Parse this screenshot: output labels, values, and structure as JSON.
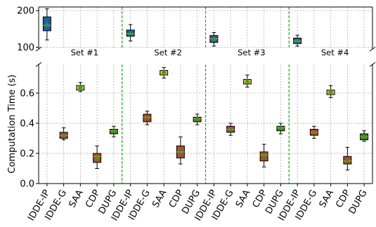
{
  "chart_data": {
    "type": "box",
    "ylabel": "Computation Time (s)",
    "categories": [
      "IDDE-IP",
      "IDDE-G",
      "SAA",
      "CDP",
      "DUPG"
    ],
    "groups": [
      "Set #1",
      "Set #2",
      "Set #3",
      "Set #4"
    ],
    "colors": {
      "IDDE-IP": "#c0392b",
      "IDDE-G": "#c0392b",
      "SAA": "#c8c832",
      "CDP": "#a0522d",
      "DUPG": "#2e8b2e",
      "top_boxes": "#1f5fa8",
      "mean_marker": "#2ca02c",
      "separator": "#2ca02c"
    },
    "top_panel": {
      "ylim": [
        95,
        210
      ],
      "yticks": [
        100,
        200
      ],
      "boxes": [
        {
          "set": "Set #1",
          "whislo": 120,
          "q1": 145,
          "med": 160,
          "q3": 183,
          "whishi": 205,
          "mean": 162
        },
        {
          "set": "Set #2",
          "whislo": 117,
          "q1": 130,
          "med": 137,
          "q3": 147,
          "whishi": 162,
          "mean": 138
        },
        {
          "set": "Set #3",
          "whislo": 103,
          "q1": 113,
          "med": 123,
          "q3": 132,
          "whishi": 140,
          "mean": 123
        },
        {
          "set": "Set #4",
          "whislo": 103,
          "q1": 110,
          "med": 117,
          "q3": 125,
          "whishi": 133,
          "mean": 118
        }
      ]
    },
    "bottom_panel": {
      "ylim": [
        0.0,
        0.79
      ],
      "yticks": [
        0.0,
        0.2,
        0.4,
        0.6
      ],
      "ytick_labels": [
        "0.0",
        "0.2",
        "0.4",
        "0.6"
      ],
      "groups": [
        {
          "set": "Set #1",
          "boxes": [
            {
              "name": "IDDE-G",
              "whislo": 0.29,
              "q1": 0.3,
              "med": 0.32,
              "q3": 0.34,
              "whishi": 0.37,
              "mean": 0.32
            },
            {
              "name": "SAA",
              "whislo": 0.61,
              "q1": 0.62,
              "med": 0.64,
              "q3": 0.65,
              "whishi": 0.67,
              "mean": 0.64
            },
            {
              "name": "CDP",
              "whislo": 0.1,
              "q1": 0.14,
              "med": 0.18,
              "q3": 0.2,
              "whishi": 0.25,
              "mean": 0.17
            },
            {
              "name": "DUPG",
              "whislo": 0.31,
              "q1": 0.33,
              "med": 0.35,
              "q3": 0.36,
              "whishi": 0.38,
              "mean": 0.35
            }
          ]
        },
        {
          "set": "Set #2",
          "boxes": [
            {
              "name": "IDDE-G",
              "whislo": 0.39,
              "q1": 0.41,
              "med": 0.44,
              "q3": 0.46,
              "whishi": 0.48,
              "mean": 0.44
            },
            {
              "name": "SAA",
              "whislo": 0.7,
              "q1": 0.72,
              "med": 0.74,
              "q3": 0.75,
              "whishi": 0.77,
              "mean": 0.74
            },
            {
              "name": "CDP",
              "whislo": 0.13,
              "q1": 0.17,
              "med": 0.21,
              "q3": 0.25,
              "whishi": 0.31,
              "mean": 0.21
            },
            {
              "name": "DUPG",
              "whislo": 0.39,
              "q1": 0.41,
              "med": 0.43,
              "q3": 0.44,
              "whishi": 0.46,
              "mean": 0.43
            }
          ]
        },
        {
          "set": "Set #3",
          "boxes": [
            {
              "name": "IDDE-G",
              "whislo": 0.32,
              "q1": 0.34,
              "med": 0.36,
              "q3": 0.38,
              "whishi": 0.4,
              "mean": 0.36
            },
            {
              "name": "SAA",
              "whislo": 0.64,
              "q1": 0.66,
              "med": 0.68,
              "q3": 0.69,
              "whishi": 0.72,
              "mean": 0.68
            },
            {
              "name": "CDP",
              "whislo": 0.11,
              "q1": 0.15,
              "med": 0.19,
              "q3": 0.21,
              "whishi": 0.26,
              "mean": 0.19
            },
            {
              "name": "DUPG",
              "whislo": 0.33,
              "q1": 0.35,
              "med": 0.37,
              "q3": 0.38,
              "whishi": 0.4,
              "mean": 0.37
            }
          ]
        },
        {
          "set": "Set #4",
          "boxes": [
            {
              "name": "IDDE-G",
              "whislo": 0.3,
              "q1": 0.32,
              "med": 0.34,
              "q3": 0.36,
              "whishi": 0.38,
              "mean": 0.34
            },
            {
              "name": "SAA",
              "whislo": 0.57,
              "q1": 0.59,
              "med": 0.61,
              "q3": 0.62,
              "whishi": 0.65,
              "mean": 0.61
            },
            {
              "name": "CDP",
              "whislo": 0.09,
              "q1": 0.13,
              "med": 0.15,
              "q3": 0.18,
              "whishi": 0.24,
              "mean": 0.15
            },
            {
              "name": "DUPG",
              "whislo": 0.28,
              "q1": 0.29,
              "med": 0.31,
              "q3": 0.33,
              "whishi": 0.35,
              "mean": 0.31
            }
          ]
        }
      ]
    },
    "grid": true,
    "broken_axis": true
  }
}
